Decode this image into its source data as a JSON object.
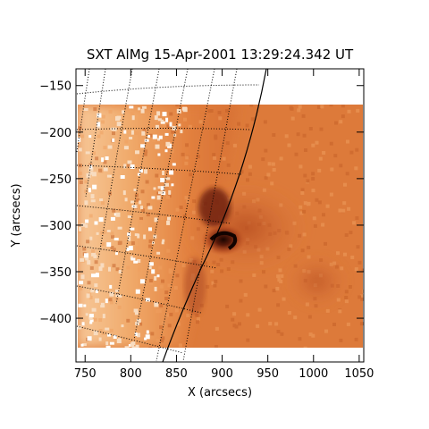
{
  "title": "SXT AlMg 15-Apr-2001 13:29:24.342 UT",
  "xlabel": "X (arcsecs)",
  "ylabel": "Y (arcsecs)",
  "axes": {
    "xlim": [
      740,
      1055
    ],
    "ylim": [
      -447,
      -132
    ],
    "x_ticks": [
      750,
      800,
      850,
      900,
      950,
      1000,
      1050
    ],
    "x_tick_labels": [
      "750",
      "800",
      "850",
      "900",
      "950",
      "1000",
      "1050"
    ],
    "y_ticks": [
      -150,
      -200,
      -250,
      -300,
      -350,
      -400
    ],
    "y_tick_labels": [
      "−150",
      "−200",
      "−250",
      "−300",
      "−350",
      "−400"
    ]
  },
  "image": {
    "colormap": "orange heat",
    "colors": {
      "background": "#ffffff",
      "bright": "#faeedd",
      "mid": "#e88a3c",
      "dark": "#8a2a12",
      "core": "#1a0500"
    },
    "extent_x": [
      755,
      1055
    ],
    "extent_y": [
      -432,
      -173
    ],
    "features": [
      "bright active region near limb",
      "dark loop core at (910, -320)",
      "solar limb arc",
      "dotted heliographic grid"
    ]
  }
}
